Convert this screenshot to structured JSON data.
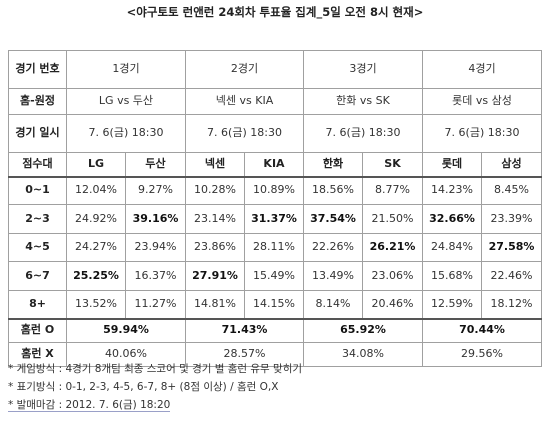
{
  "title": "<야구토토 런앤런 24회차 투표율 집계_5일 오전 8시 현재>",
  "header": {
    "round_label": "경기 번호",
    "home_away_label": "홈-원정",
    "date_label": "경기 일시",
    "score_label": "점수대",
    "homerun_o_label": "홈런 O",
    "homerun_x_label": "홈런 X"
  },
  "games": [
    {
      "number": "1경기",
      "matchup": "LG vs 두산",
      "datetime": "7. 6(금) 18:30",
      "home": "LG",
      "away": "두산",
      "homerun_o": "59.94%",
      "homerun_x": "40.06%"
    },
    {
      "number": "2경기",
      "matchup": "넥센 vs KIA",
      "datetime": "7. 6(금) 18:30",
      "home": "넥센",
      "away": "KIA",
      "homerun_o": "71.43%",
      "homerun_x": "28.57%"
    },
    {
      "number": "3경기",
      "matchup": "한화 vs SK",
      "datetime": "7. 6(금) 18:30",
      "home": "한화",
      "away": "SK",
      "homerun_o": "65.92%",
      "homerun_x": "34.08%"
    },
    {
      "number": "4경기",
      "matchup": "롯데 vs 삼성",
      "datetime": "7. 6(금) 18:30",
      "home": "롯데",
      "away": "삼성",
      "homerun_o": "70.44%",
      "homerun_x": "29.56%"
    }
  ],
  "score_rows": [
    {
      "range": "0~1",
      "values": [
        "12.04%",
        "9.27%",
        "10.28%",
        "10.89%",
        "18.56%",
        "8.77%",
        "14.23%",
        "8.45%"
      ],
      "bold": [
        false,
        false,
        false,
        false,
        false,
        false,
        false,
        false
      ]
    },
    {
      "range": "2~3",
      "values": [
        "24.92%",
        "39.16%",
        "23.14%",
        "31.37%",
        "37.54%",
        "21.50%",
        "32.66%",
        "23.39%"
      ],
      "bold": [
        false,
        true,
        false,
        true,
        true,
        false,
        true,
        false
      ]
    },
    {
      "range": "4~5",
      "values": [
        "24.27%",
        "23.94%",
        "23.86%",
        "28.11%",
        "22.26%",
        "26.21%",
        "24.84%",
        "27.58%"
      ],
      "bold": [
        false,
        false,
        false,
        false,
        false,
        true,
        false,
        true
      ]
    },
    {
      "range": "6~7",
      "values": [
        "25.25%",
        "16.37%",
        "27.91%",
        "15.49%",
        "13.49%",
        "23.06%",
        "15.68%",
        "22.46%"
      ],
      "bold": [
        true,
        false,
        true,
        false,
        false,
        false,
        false,
        false
      ]
    },
    {
      "range": "8+",
      "values": [
        "13.52%",
        "11.27%",
        "14.81%",
        "14.15%",
        "8.14%",
        "20.46%",
        "12.59%",
        "18.12%"
      ],
      "bold": [
        false,
        false,
        false,
        false,
        false,
        false,
        false,
        false
      ]
    }
  ],
  "notes": [
    "* 게임방식 : 4경기 8개팀 최종 스코어 및 경기 별 홈런 유무 맞히기",
    "* 표기방식 : 0-1, 2-3, 4-5, 6-7, 8+ (8점 이상) / 홈런 O,X",
    "* 발매마감 : 2012. 7. 6(금) 18:20"
  ]
}
